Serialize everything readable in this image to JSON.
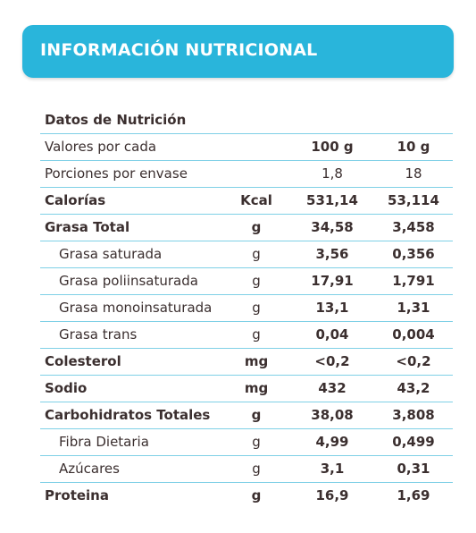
{
  "banner": {
    "title": "INFORMACIÓN NUTRICIONAL",
    "color": "#29b5db"
  },
  "table": {
    "title": "Datos de Nutrición",
    "rows": [
      {
        "label": "Valores por cada",
        "unit": "",
        "v1": "100 g",
        "v2": "10 g",
        "style": "header-values"
      },
      {
        "label": "Porciones por envase",
        "unit": "",
        "v1": "1,8",
        "v2": "18",
        "style": "plain"
      },
      {
        "label": "Calorías",
        "unit": "Kcal",
        "v1": "531,14",
        "v2": "53,114",
        "style": "bold"
      },
      {
        "label": "Grasa Total",
        "unit": "g",
        "v1": "34,58",
        "v2": "3,458",
        "style": "bold"
      },
      {
        "label": "Grasa saturada",
        "unit": "g",
        "v1": "3,56",
        "v2": "0,356",
        "style": "sub"
      },
      {
        "label": "Grasa poliinsaturada",
        "unit": "g",
        "v1": "17,91",
        "v2": "1,791",
        "style": "sub"
      },
      {
        "label": "Grasa monoinsaturada",
        "unit": "g",
        "v1": "13,1",
        "v2": "1,31",
        "style": "sub"
      },
      {
        "label": "Grasa trans",
        "unit": "g",
        "v1": "0,04",
        "v2": "0,004",
        "style": "sub"
      },
      {
        "label": "Colesterol",
        "unit": "mg",
        "v1": "<0,2",
        "v2": "<0,2",
        "style": "bold"
      },
      {
        "label": "Sodio",
        "unit": "mg",
        "v1": "432",
        "v2": "43,2",
        "style": "bold"
      },
      {
        "label": "Carbohidratos Totales",
        "unit": "g",
        "v1": "38,08",
        "v2": "3,808",
        "style": "bold"
      },
      {
        "label": "Fibra Dietaria",
        "unit": "g",
        "v1": "4,99",
        "v2": "0,499",
        "style": "sub"
      },
      {
        "label": "Azúcares",
        "unit": "g",
        "v1": "3,1",
        "v2": "0,31",
        "style": "sub"
      },
      {
        "label": "Proteina",
        "unit": "g",
        "v1": "16,9",
        "v2": "1,69",
        "style": "bold"
      }
    ]
  }
}
